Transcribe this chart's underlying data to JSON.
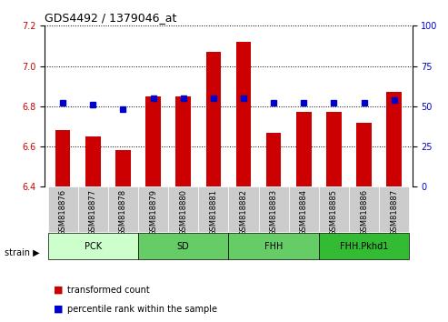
{
  "title": "GDS4492 / 1379046_at",
  "samples": [
    "GSM818876",
    "GSM818877",
    "GSM818878",
    "GSM818879",
    "GSM818880",
    "GSM818881",
    "GSM818882",
    "GSM818883",
    "GSM818884",
    "GSM818885",
    "GSM818886",
    "GSM818887"
  ],
  "red_values": [
    6.68,
    6.65,
    6.58,
    6.85,
    6.85,
    7.07,
    7.12,
    6.67,
    6.77,
    6.77,
    6.72,
    6.87
  ],
  "blue_values": [
    52,
    51,
    48,
    55,
    55,
    55,
    55,
    52,
    52,
    52,
    52,
    54
  ],
  "ylim_left": [
    6.4,
    7.2
  ],
  "ylim_right": [
    0,
    100
  ],
  "yticks_left": [
    6.4,
    6.6,
    6.8,
    7.0,
    7.2
  ],
  "yticks_right": [
    0,
    25,
    50,
    75,
    100
  ],
  "bar_color": "#cc0000",
  "dot_color": "#0000cc",
  "grid_color": "#000000",
  "strain_groups": [
    {
      "label": "PCK",
      "start": 0,
      "end": 3,
      "color": "#ccffcc"
    },
    {
      "label": "SD",
      "start": 3,
      "end": 6,
      "color": "#66cc66"
    },
    {
      "label": "FHH",
      "start": 6,
      "end": 9,
      "color": "#66cc66"
    },
    {
      "label": "FHH.Pkhd1",
      "start": 9,
      "end": 12,
      "color": "#33bb33"
    }
  ],
  "strain_label": "strain",
  "legend_red": "transformed count",
  "legend_blue": "percentile rank within the sample",
  "tick_bg_color": "#cccccc"
}
